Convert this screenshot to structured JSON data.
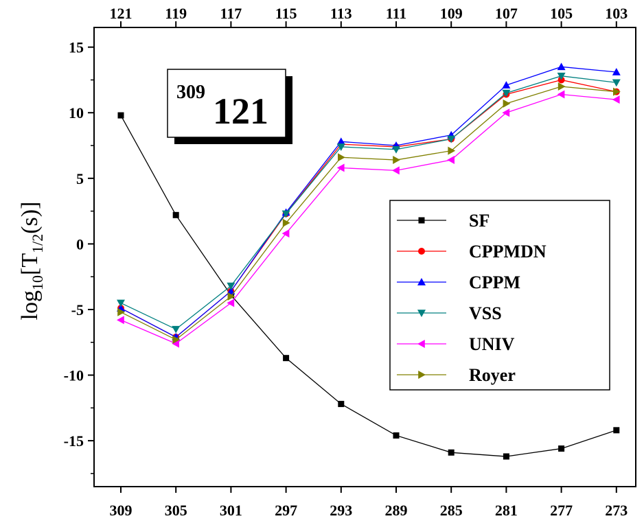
{
  "chart_data": {
    "type": "line",
    "x": [
      309,
      305,
      301,
      297,
      293,
      289,
      285,
      281,
      277,
      273
    ],
    "x_top": [
      121,
      119,
      117,
      115,
      113,
      111,
      109,
      107,
      105,
      103
    ],
    "ylim": [
      -18.5,
      16.5
    ],
    "yticks": [
      15,
      10,
      5,
      0,
      -5,
      -10,
      -15
    ],
    "ylabel": {
      "base": "log",
      "sub": "10",
      "mid": "[T",
      "sub2": "1/2",
      "end": "(s)]"
    },
    "annotation": {
      "superscript": "309",
      "number": "121"
    },
    "legend_position": "right",
    "series": [
      {
        "name": "SF",
        "color": "#000000",
        "marker": "square",
        "values": [
          9.8,
          2.2,
          -3.9,
          -8.7,
          -12.2,
          -14.6,
          -15.9,
          -16.2,
          -15.6,
          -14.2
        ]
      },
      {
        "name": "CPPMDN",
        "color": "#ff0000",
        "marker": "circle",
        "values": [
          -4.9,
          -7.1,
          -3.6,
          2.3,
          7.6,
          7.4,
          8.0,
          11.4,
          12.5,
          11.6
        ]
      },
      {
        "name": "CPPM",
        "color": "#0000ff",
        "marker": "triangle-up",
        "values": [
          -4.9,
          -7.1,
          -3.6,
          2.4,
          7.8,
          7.5,
          8.3,
          12.1,
          13.5,
          13.1
        ]
      },
      {
        "name": "VSS",
        "color": "#008080",
        "marker": "triangle-down",
        "values": [
          -4.5,
          -6.5,
          -3.2,
          2.3,
          7.4,
          7.2,
          8.0,
          11.5,
          12.8,
          12.3
        ]
      },
      {
        "name": "UNIV",
        "color": "#ff00ff",
        "marker": "triangle-left",
        "values": [
          -5.8,
          -7.6,
          -4.5,
          0.8,
          5.8,
          5.6,
          6.4,
          10.0,
          11.4,
          11.0
        ]
      },
      {
        "name": "Royer",
        "color": "#808000",
        "marker": "triangle-right",
        "values": [
          -5.2,
          -7.3,
          -4.0,
          1.6,
          6.6,
          6.4,
          7.1,
          10.7,
          12.0,
          11.6
        ]
      }
    ]
  }
}
